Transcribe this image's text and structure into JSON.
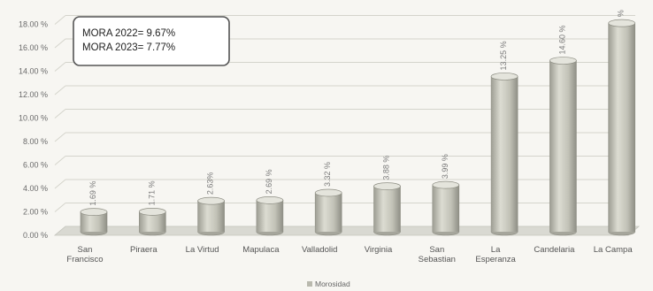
{
  "chart_data": {
    "type": "bar",
    "style": "3d-cylinder",
    "categories": [
      [
        "San",
        "Francisco"
      ],
      [
        "Piraera"
      ],
      [
        "La Virtud"
      ],
      [
        "Mapulaca"
      ],
      [
        "Valladolid"
      ],
      [
        "Virginia"
      ],
      [
        "San",
        "Sebastian"
      ],
      [
        "La",
        "Esperanza"
      ],
      [
        "Candelaria"
      ],
      [
        "La Campa"
      ]
    ],
    "series": [
      {
        "name": "Morosidad",
        "values": [
          1.69,
          1.71,
          2.63,
          2.69,
          3.32,
          3.88,
          3.99,
          13.25,
          14.6,
          17.8
        ],
        "labels": [
          "1.69 %",
          "1.71 %",
          "2.63%",
          "2.69 %",
          "3.32 %",
          "3.88 %",
          "3.99 %",
          "13.25 %",
          "14.60 %",
          "%"
        ]
      }
    ],
    "y_ticks": [
      "0.00 %",
      "2.00 %",
      "4.00 %",
      "6.00 %",
      "8.00 %",
      "10.00 %",
      "12.00 %",
      "14.00 %",
      "16.00 %",
      "18.00 %"
    ],
    "ylim": [
      0,
      18
    ],
    "grid": true,
    "legend": {
      "position": "bottom",
      "entries": [
        "Morosidad"
      ]
    },
    "annotation": [
      "MORA 2022= 9.67%",
      "MORA 2023= 7.77%"
    ],
    "colors": {
      "bar": "#c8c8bc",
      "bar_edge": "#8e8e84",
      "grid": "#d4d4cc",
      "floor": "#d9d9d2",
      "legend_swatch": "#b9b9ae"
    }
  }
}
